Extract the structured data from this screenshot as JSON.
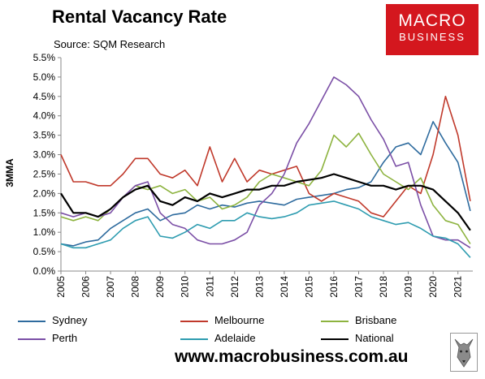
{
  "header": {
    "title": "Rental Vacancy Rate",
    "source": "Source: SQM Research"
  },
  "logo": {
    "line1": "MACRO",
    "line2": "BUSINESS"
  },
  "footer": {
    "url": "www.macrobusiness.com.au"
  },
  "colors": {
    "Sydney": "#2e6b9e",
    "Melbourne": "#c0392b",
    "Brisbane": "#8db33f",
    "Perth": "#7b4fa6",
    "Adelaide": "#2e9cb0",
    "National": "#000000",
    "logo_bg": "#d4171e"
  },
  "icons": {
    "watermark": "wolf-icon"
  },
  "chart_data": {
    "type": "line",
    "ylabel": "3MMA",
    "xlabel": "",
    "ylim": [
      0,
      5.5
    ],
    "xlim": [
      2005,
      2021.6
    ],
    "y_ticks": [
      "0.0%",
      "0.5%",
      "1.0%",
      "1.5%",
      "2.0%",
      "2.5%",
      "3.0%",
      "3.5%",
      "4.0%",
      "4.5%",
      "5.0%",
      "5.5%"
    ],
    "x_ticks": [
      "2005",
      "2006",
      "2007",
      "2008",
      "2009",
      "2010",
      "2011",
      "2012",
      "2013",
      "2014",
      "2015",
      "2016",
      "2017",
      "2018",
      "2019",
      "2020",
      "2021"
    ],
    "grid": false,
    "legend_position": "bottom",
    "series": [
      {
        "name": "Sydney",
        "x": [
          2005,
          2005.5,
          2006,
          2006.5,
          2007,
          2007.5,
          2008,
          2008.5,
          2009,
          2009.5,
          2010,
          2010.5,
          2011,
          2011.5,
          2012,
          2012.5,
          2013,
          2013.5,
          2014,
          2014.5,
          2015,
          2015.5,
          2016,
          2016.5,
          2017,
          2017.5,
          2018,
          2018.5,
          2019,
          2019.5,
          2020,
          2020.5,
          2021,
          2021.5
        ],
        "y": [
          0.7,
          0.65,
          0.75,
          0.8,
          1.1,
          1.3,
          1.5,
          1.6,
          1.3,
          1.45,
          1.5,
          1.7,
          1.6,
          1.7,
          1.65,
          1.75,
          1.8,
          1.75,
          1.7,
          1.85,
          1.9,
          1.95,
          2.0,
          2.1,
          2.15,
          2.3,
          2.8,
          3.2,
          3.3,
          3.0,
          3.85,
          3.3,
          2.8,
          1.55
        ]
      },
      {
        "name": "Melbourne",
        "x": [
          2005,
          2005.5,
          2006,
          2006.5,
          2007,
          2007.5,
          2008,
          2008.5,
          2009,
          2009.5,
          2010,
          2010.5,
          2011,
          2011.5,
          2012,
          2012.5,
          2013,
          2013.5,
          2014,
          2014.5,
          2015,
          2015.5,
          2016,
          2016.5,
          2017,
          2017.5,
          2018,
          2018.5,
          2019,
          2019.5,
          2020,
          2020.5,
          2021,
          2021.5
        ],
        "y": [
          3.0,
          2.3,
          2.3,
          2.2,
          2.2,
          2.5,
          2.9,
          2.9,
          2.5,
          2.4,
          2.6,
          2.2,
          3.2,
          2.3,
          2.9,
          2.3,
          2.6,
          2.5,
          2.6,
          2.7,
          2.0,
          1.8,
          2.0,
          1.9,
          1.8,
          1.5,
          1.4,
          1.8,
          2.2,
          2.0,
          3.0,
          4.5,
          3.5,
          1.8
        ]
      },
      {
        "name": "Brisbane",
        "x": [
          2005,
          2005.5,
          2006,
          2006.5,
          2007,
          2007.5,
          2008,
          2008.5,
          2009,
          2009.5,
          2010,
          2010.5,
          2011,
          2011.5,
          2012,
          2012.5,
          2013,
          2013.5,
          2014,
          2014.5,
          2015,
          2015.5,
          2016,
          2016.5,
          2017,
          2017.5,
          2018,
          2018.5,
          2019,
          2019.5,
          2020,
          2020.5,
          2021,
          2021.5
        ],
        "y": [
          1.4,
          1.3,
          1.4,
          1.3,
          1.6,
          1.9,
          2.2,
          2.1,
          2.2,
          2.0,
          2.1,
          1.8,
          1.9,
          1.6,
          1.7,
          1.9,
          2.3,
          2.5,
          2.4,
          2.3,
          2.2,
          2.6,
          3.5,
          3.2,
          3.55,
          3.0,
          2.5,
          2.3,
          2.1,
          2.4,
          1.7,
          1.3,
          1.2,
          0.7
        ]
      },
      {
        "name": "Perth",
        "x": [
          2005,
          2005.5,
          2006,
          2006.5,
          2007,
          2007.5,
          2008,
          2008.5,
          2009,
          2009.5,
          2010,
          2010.5,
          2011,
          2011.5,
          2012,
          2012.5,
          2013,
          2013.5,
          2014,
          2014.5,
          2015,
          2015.5,
          2016,
          2016.5,
          2017,
          2017.5,
          2018,
          2018.5,
          2019,
          2019.5,
          2020,
          2020.5,
          2021,
          2021.5
        ],
        "y": [
          1.5,
          1.4,
          1.5,
          1.4,
          1.5,
          1.9,
          2.2,
          2.3,
          1.5,
          1.2,
          1.1,
          0.8,
          0.7,
          0.7,
          0.8,
          1.0,
          1.7,
          2.0,
          2.5,
          3.3,
          3.8,
          4.4,
          5.0,
          4.8,
          4.5,
          3.9,
          3.4,
          2.7,
          2.8,
          1.7,
          0.9,
          0.8,
          0.8,
          0.6
        ]
      },
      {
        "name": "Adelaide",
        "x": [
          2005,
          2005.5,
          2006,
          2006.5,
          2007,
          2007.5,
          2008,
          2008.5,
          2009,
          2009.5,
          2010,
          2010.5,
          2011,
          2011.5,
          2012,
          2012.5,
          2013,
          2013.5,
          2014,
          2014.5,
          2015,
          2015.5,
          2016,
          2016.5,
          2017,
          2017.5,
          2018,
          2018.5,
          2019,
          2019.5,
          2020,
          2020.5,
          2021,
          2021.5
        ],
        "y": [
          0.7,
          0.6,
          0.6,
          0.7,
          0.8,
          1.1,
          1.3,
          1.4,
          0.9,
          0.85,
          1.0,
          1.2,
          1.1,
          1.3,
          1.3,
          1.5,
          1.4,
          1.35,
          1.4,
          1.5,
          1.7,
          1.75,
          1.8,
          1.7,
          1.6,
          1.4,
          1.3,
          1.2,
          1.25,
          1.1,
          0.9,
          0.85,
          0.7,
          0.35
        ]
      },
      {
        "name": "National",
        "x": [
          2005,
          2005.5,
          2006,
          2006.5,
          2007,
          2007.5,
          2008,
          2008.5,
          2009,
          2009.5,
          2010,
          2010.5,
          2011,
          2011.5,
          2012,
          2012.5,
          2013,
          2013.5,
          2014,
          2014.5,
          2015,
          2015.5,
          2016,
          2016.5,
          2017,
          2017.5,
          2018,
          2018.5,
          2019,
          2019.5,
          2020,
          2020.5,
          2021,
          2021.5
        ],
        "y": [
          2.0,
          1.5,
          1.5,
          1.4,
          1.6,
          1.9,
          2.1,
          2.2,
          1.8,
          1.7,
          1.9,
          1.8,
          2.0,
          1.9,
          2.0,
          2.1,
          2.1,
          2.2,
          2.2,
          2.3,
          2.35,
          2.4,
          2.5,
          2.4,
          2.3,
          2.2,
          2.2,
          2.1,
          2.2,
          2.2,
          2.1,
          1.8,
          1.5,
          1.05
        ]
      }
    ]
  }
}
